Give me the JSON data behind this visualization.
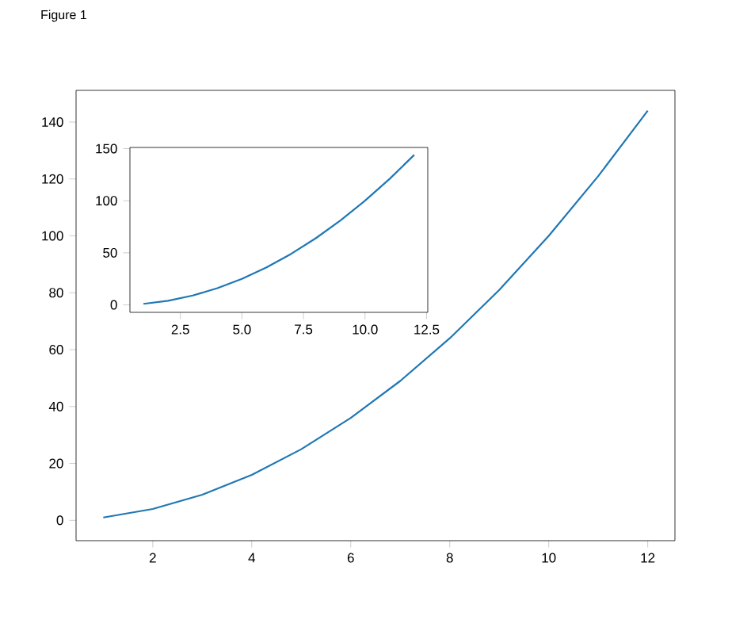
{
  "chart_data": [
    {
      "type": "line",
      "annotations": [
        "Figure 1"
      ],
      "x": [
        1,
        2,
        3,
        4,
        5,
        6,
        7,
        8,
        9,
        10,
        11,
        12
      ],
      "values": [
        1,
        4,
        9,
        16,
        25,
        36,
        49,
        64,
        81,
        100,
        121,
        144
      ],
      "color": "#1f77b4",
      "xlim": [
        0.45,
        12.55
      ],
      "ylim": [
        -7.15,
        151.15
      ],
      "xticks": [
        2,
        4,
        6,
        8,
        10,
        12
      ],
      "yticks": [
        0,
        20,
        40,
        60,
        80,
        100,
        120,
        140
      ]
    },
    {
      "type": "line",
      "x": [
        1,
        2,
        3,
        4,
        5,
        6,
        7,
        8,
        9,
        10,
        11,
        12
      ],
      "values": [
        1,
        4,
        9,
        16,
        25,
        36,
        49,
        64,
        81,
        100,
        121,
        144
      ],
      "color": "#1f77b4",
      "xlim": [
        0.45,
        12.55
      ],
      "ylim": [
        -7.15,
        151.15
      ],
      "xticks": [
        2.5,
        {
          "value": 5,
          "label": "5.0"
        },
        7.5,
        {
          "value": 10,
          "label": "10.0"
        },
        12.5
      ],
      "yticks": [
        0,
        50,
        100,
        150
      ]
    }
  ]
}
